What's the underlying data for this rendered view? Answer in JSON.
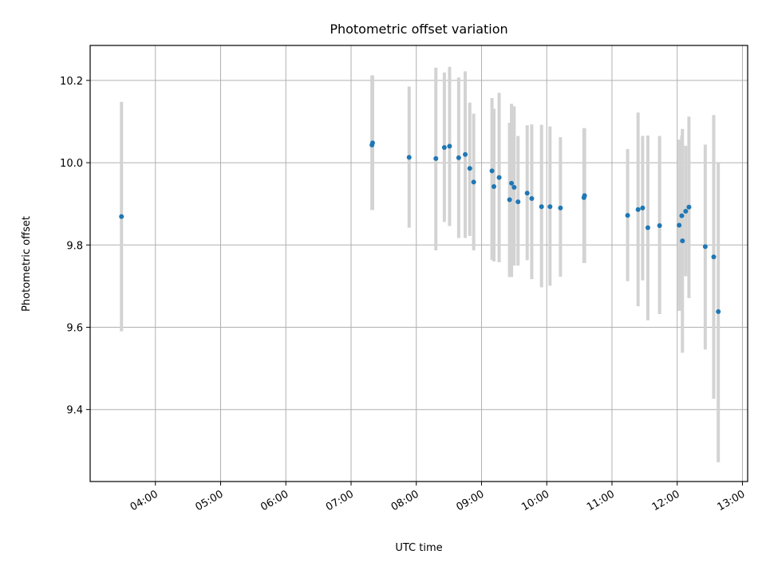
{
  "chart_data": {
    "type": "scatter",
    "title": "Photometric offset variation",
    "xlabel": "UTC time",
    "ylabel": "Photometric offset",
    "x_unit": "hours",
    "xlim": [
      3.0,
      13.08
    ],
    "ylim": [
      9.225,
      10.285
    ],
    "grid": true,
    "x_ticks": [
      {
        "value": 4,
        "label": "04:00"
      },
      {
        "value": 5,
        "label": "05:00"
      },
      {
        "value": 6,
        "label": "06:00"
      },
      {
        "value": 7,
        "label": "07:00"
      },
      {
        "value": 8,
        "label": "08:00"
      },
      {
        "value": 9,
        "label": "09:00"
      },
      {
        "value": 10,
        "label": "10:00"
      },
      {
        "value": 11,
        "label": "11:00"
      },
      {
        "value": 12,
        "label": "12:00"
      },
      {
        "value": 13,
        "label": "13:00"
      }
    ],
    "y_ticks": [
      {
        "value": 9.4,
        "label": "9.4"
      },
      {
        "value": 9.6,
        "label": "9.6"
      },
      {
        "value": 9.8,
        "label": "9.8"
      },
      {
        "value": 10.0,
        "label": "10.0"
      },
      {
        "value": 10.2,
        "label": "10.2"
      }
    ],
    "point_color": "#1f77b4",
    "errorbar_color": "#d3d3d3",
    "points": [
      {
        "x": 3.48,
        "y": 9.869,
        "ylo": 9.59,
        "yhi": 10.148
      },
      {
        "x": 7.32,
        "y": 10.043,
        "ylo": 9.885,
        "yhi": 10.212
      },
      {
        "x": 7.33,
        "y": 10.048,
        "ylo": 9.885,
        "yhi": 10.212
      },
      {
        "x": 7.89,
        "y": 10.013,
        "ylo": 9.842,
        "yhi": 10.185
      },
      {
        "x": 8.3,
        "y": 10.01,
        "ylo": 9.787,
        "yhi": 10.231
      },
      {
        "x": 8.43,
        "y": 10.037,
        "ylo": 9.856,
        "yhi": 10.219
      },
      {
        "x": 8.51,
        "y": 10.04,
        "ylo": 9.846,
        "yhi": 10.233
      },
      {
        "x": 8.65,
        "y": 10.012,
        "ylo": 9.817,
        "yhi": 10.207
      },
      {
        "x": 8.75,
        "y": 10.02,
        "ylo": 9.817,
        "yhi": 10.222
      },
      {
        "x": 8.82,
        "y": 9.986,
        "ylo": 9.822,
        "yhi": 10.146
      },
      {
        "x": 8.88,
        "y": 9.953,
        "ylo": 9.787,
        "yhi": 10.119
      },
      {
        "x": 9.16,
        "y": 9.98,
        "ylo": 9.764,
        "yhi": 10.157
      },
      {
        "x": 9.19,
        "y": 9.942,
        "ylo": 9.76,
        "yhi": 10.131
      },
      {
        "x": 9.27,
        "y": 9.964,
        "ylo": 9.758,
        "yhi": 10.17
      },
      {
        "x": 9.43,
        "y": 9.91,
        "ylo": 9.722,
        "yhi": 10.097
      },
      {
        "x": 9.46,
        "y": 9.95,
        "ylo": 9.722,
        "yhi": 10.143
      },
      {
        "x": 9.5,
        "y": 9.94,
        "ylo": 9.75,
        "yhi": 10.137
      },
      {
        "x": 9.56,
        "y": 9.905,
        "ylo": 9.75,
        "yhi": 10.065
      },
      {
        "x": 9.7,
        "y": 9.926,
        "ylo": 9.763,
        "yhi": 10.091
      },
      {
        "x": 9.77,
        "y": 9.913,
        "ylo": 9.717,
        "yhi": 10.093
      },
      {
        "x": 9.92,
        "y": 9.893,
        "ylo": 9.697,
        "yhi": 10.092
      },
      {
        "x": 10.05,
        "y": 9.893,
        "ylo": 9.701,
        "yhi": 10.088
      },
      {
        "x": 10.21,
        "y": 9.89,
        "ylo": 9.723,
        "yhi": 10.062
      },
      {
        "x": 10.57,
        "y": 9.915,
        "ylo": 9.756,
        "yhi": 10.084
      },
      {
        "x": 10.58,
        "y": 9.92,
        "ylo": 9.756,
        "yhi": 10.084
      },
      {
        "x": 11.24,
        "y": 9.872,
        "ylo": 9.712,
        "yhi": 10.033
      },
      {
        "x": 11.4,
        "y": 9.886,
        "ylo": 9.651,
        "yhi": 10.122
      },
      {
        "x": 11.47,
        "y": 9.89,
        "ylo": 9.714,
        "yhi": 10.065
      },
      {
        "x": 11.55,
        "y": 9.842,
        "ylo": 9.617,
        "yhi": 10.066
      },
      {
        "x": 11.73,
        "y": 9.847,
        "ylo": 9.632,
        "yhi": 10.065
      },
      {
        "x": 12.03,
        "y": 9.848,
        "ylo": 9.64,
        "yhi": 10.056
      },
      {
        "x": 12.07,
        "y": 9.871,
        "ylo": 9.64,
        "yhi": 10.066
      },
      {
        "x": 12.08,
        "y": 9.81,
        "ylo": 9.538,
        "yhi": 10.082
      },
      {
        "x": 12.13,
        "y": 9.882,
        "ylo": 9.724,
        "yhi": 10.041
      },
      {
        "x": 12.18,
        "y": 9.892,
        "ylo": 9.671,
        "yhi": 10.112
      },
      {
        "x": 12.43,
        "y": 9.796,
        "ylo": 9.546,
        "yhi": 10.044
      },
      {
        "x": 12.56,
        "y": 9.771,
        "ylo": 9.426,
        "yhi": 10.116
      },
      {
        "x": 12.63,
        "y": 9.638,
        "ylo": 9.272,
        "yhi": 10.0
      }
    ]
  }
}
